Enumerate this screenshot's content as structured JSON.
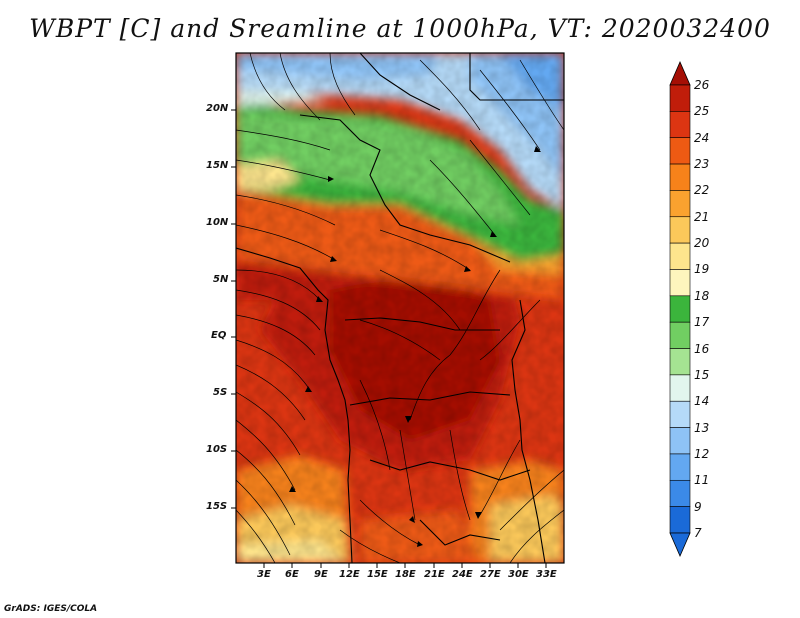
{
  "title": "WBPT [C] and Sreamline at 1000hPa, VT: 2020032400",
  "credit": "GrADS: IGES/COLA",
  "lat_labels": [
    "20N",
    "15N",
    "10N",
    "5N",
    "EQ",
    "5S",
    "10S",
    "15S"
  ],
  "lon_labels": [
    "3E",
    "6E",
    "9E",
    "12E",
    "15E",
    "18E",
    "21E",
    "24E",
    "27E",
    "30E",
    "33E"
  ],
  "colorbar": {
    "labels": [
      "26",
      "25",
      "24",
      "23",
      "22",
      "21",
      "20",
      "19",
      "18",
      "17",
      "16",
      "15",
      "14",
      "13",
      "12",
      "11",
      "9",
      "7"
    ],
    "colors": [
      "#a50f05",
      "#c01d0a",
      "#dc3512",
      "#ee5a13",
      "#f7821a",
      "#faa22f",
      "#fbc85a",
      "#fde58d",
      "#fdf5bd",
      "#3bb53c",
      "#71ce62",
      "#a5e392",
      "#e2f6ee",
      "#b5daf8",
      "#8ec3f6",
      "#63a8f1",
      "#3b8ae8",
      "#1a6ad8",
      "#0d55c9"
    ]
  },
  "colors": {
    "deep_red": "#a50f05",
    "red": "#d42a10",
    "orange": "#ee5a13",
    "yellow": "#fbd26a",
    "green": "#3bb53c",
    "light_green": "#8fda78",
    "light_blue": "#b9dcf7",
    "blue": "#7fb8f3"
  }
}
